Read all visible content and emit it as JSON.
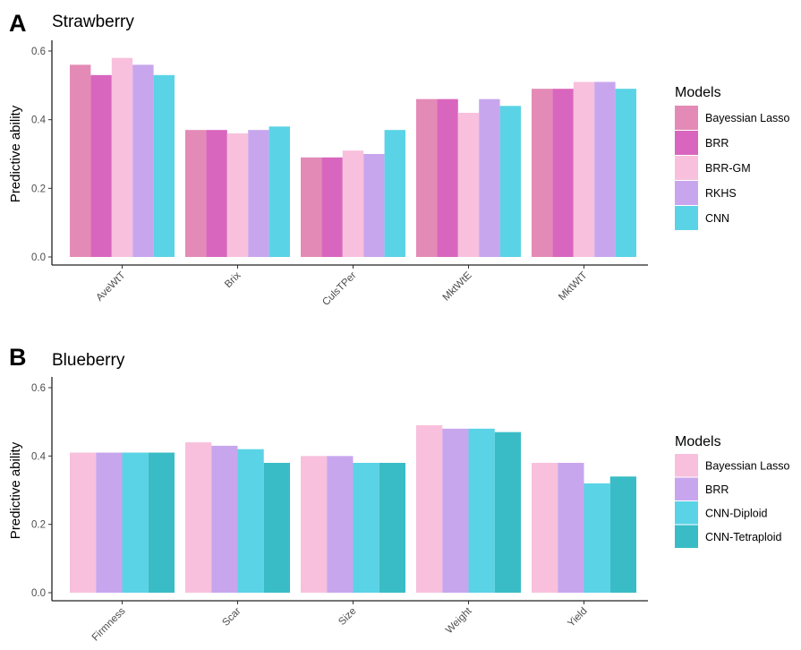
{
  "chart_data": [
    {
      "type": "bar",
      "panel": "A",
      "title": "Strawberry",
      "ylabel": "Predictive ability",
      "xlabel": "",
      "ylim": [
        0,
        0.6
      ],
      "yticks": [
        "0.0",
        "0.2",
        "0.4",
        "0.6"
      ],
      "grid": false,
      "legend_title": "Models",
      "legend_position": "right",
      "categories": [
        "AveWtT",
        "Brix",
        "CulsTPer",
        "MktWtE",
        "MktWtT"
      ],
      "series": [
        {
          "name": "Bayessian Lasso",
          "color": "#e38bb6",
          "values": [
            0.56,
            0.37,
            0.29,
            0.46,
            0.49
          ]
        },
        {
          "name": "BRR",
          "color": "#d966be",
          "values": [
            0.53,
            0.37,
            0.29,
            0.46,
            0.49
          ]
        },
        {
          "name": "BRR-GM",
          "color": "#f8c0dc",
          "values": [
            0.58,
            0.36,
            0.31,
            0.42,
            0.51
          ]
        },
        {
          "name": "RKHS",
          "color": "#c8a6ee",
          "values": [
            0.56,
            0.37,
            0.3,
            0.46,
            0.51
          ]
        },
        {
          "name": "CNN",
          "color": "#5ad3e6",
          "values": [
            0.53,
            0.38,
            0.37,
            0.44,
            0.49
          ]
        }
      ]
    },
    {
      "type": "bar",
      "panel": "B",
      "title": "Blueberry",
      "ylabel": "Predictive ability",
      "xlabel": "",
      "ylim": [
        0,
        0.6
      ],
      "yticks": [
        "0.0",
        "0.2",
        "0.4",
        "0.6"
      ],
      "grid": false,
      "legend_title": "Models",
      "legend_position": "right",
      "categories": [
        "Firmness",
        "Scar",
        "Size",
        "Weight",
        "Yield"
      ],
      "series": [
        {
          "name": "Bayessian Lasso",
          "color": "#f8c0dc",
          "values": [
            0.41,
            0.44,
            0.4,
            0.49,
            0.38
          ]
        },
        {
          "name": "BRR",
          "color": "#c8a6ee",
          "values": [
            0.41,
            0.43,
            0.4,
            0.48,
            0.38
          ]
        },
        {
          "name": "CNN-Diploid",
          "color": "#5ad3e6",
          "values": [
            0.41,
            0.42,
            0.38,
            0.48,
            0.32
          ]
        },
        {
          "name": "CNN-Tetraploid",
          "color": "#39bcc6",
          "values": [
            0.41,
            0.38,
            0.38,
            0.47,
            0.34
          ]
        }
      ]
    }
  ]
}
